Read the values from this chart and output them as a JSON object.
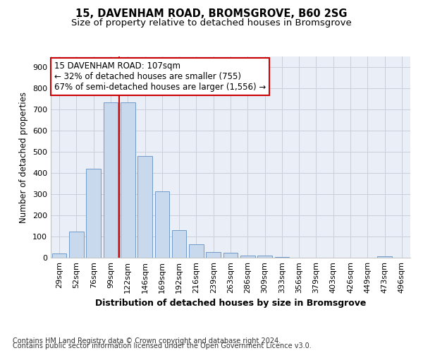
{
  "title_line1": "15, DAVENHAM ROAD, BROMSGROVE, B60 2SG",
  "title_line2": "Size of property relative to detached houses in Bromsgrove",
  "xlabel": "Distribution of detached houses by size in Bromsgrove",
  "ylabel": "Number of detached properties",
  "categories": [
    "29sqm",
    "52sqm",
    "76sqm",
    "99sqm",
    "122sqm",
    "146sqm",
    "169sqm",
    "192sqm",
    "216sqm",
    "239sqm",
    "263sqm",
    "286sqm",
    "309sqm",
    "333sqm",
    "356sqm",
    "379sqm",
    "403sqm",
    "426sqm",
    "449sqm",
    "473sqm",
    "496sqm"
  ],
  "values": [
    20,
    125,
    420,
    735,
    735,
    480,
    315,
    130,
    65,
    28,
    22,
    10,
    10,
    2,
    0,
    0,
    0,
    0,
    0,
    8,
    0
  ],
  "bar_color": "#c8d9ee",
  "bar_edge_color": "#6090c0",
  "vline_x": 3.5,
  "vline_color": "#cc0000",
  "annotation_line1": "15 DAVENHAM ROAD: 107sqm",
  "annotation_line2": "← 32% of detached houses are smaller (755)",
  "annotation_line3": "67% of semi-detached houses are larger (1,556) →",
  "annotation_box_color": "white",
  "annotation_box_edge": "#cc0000",
  "ylim": [
    0,
    950
  ],
  "yticks": [
    0,
    100,
    200,
    300,
    400,
    500,
    600,
    700,
    800,
    900
  ],
  "grid_color": "#c8d0dc",
  "bg_color": "#eaeff7",
  "footnote_line1": "Contains HM Land Registry data © Crown copyright and database right 2024.",
  "footnote_line2": "Contains public sector information licensed under the Open Government Licence v3.0.",
  "title_fontsize": 10.5,
  "subtitle_fontsize": 9.5,
  "tick_fontsize": 8,
  "ylabel_fontsize": 8.5,
  "xlabel_fontsize": 9,
  "annotation_fontsize": 8.5,
  "footnote_fontsize": 7
}
